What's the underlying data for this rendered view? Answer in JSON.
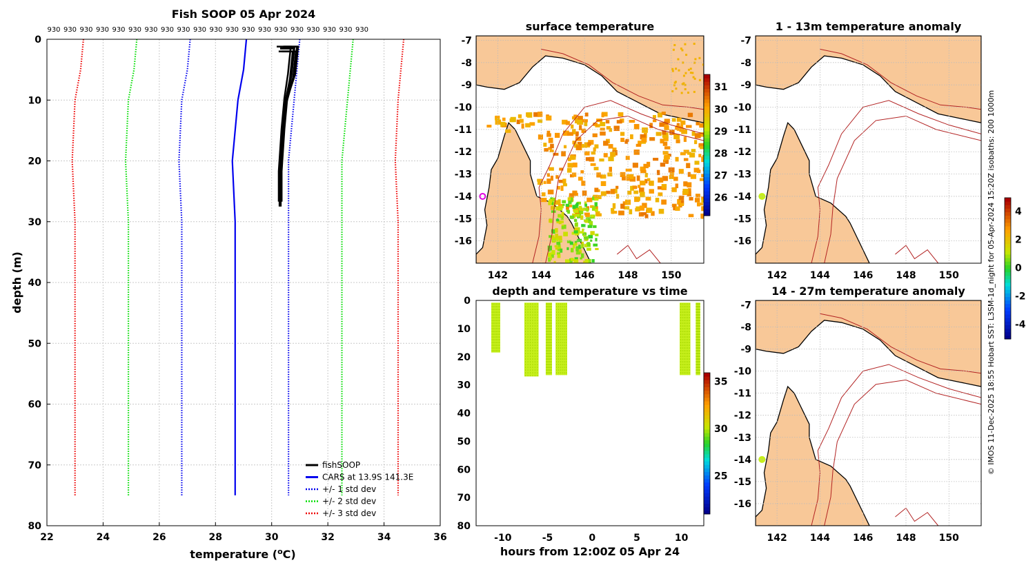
{
  "chart_data": [
    {
      "type": "line",
      "title": "Fish SOOP 05 Apr 2024",
      "xlabel": "temperature (",
      "xlabel_unit": "o",
      "xlabel_end": "C)",
      "ylabel": "depth (m)",
      "xlim": [
        22,
        36
      ],
      "ylim": [
        0,
        80
      ],
      "xticks": [
        22,
        24,
        26,
        28,
        30,
        32,
        34,
        36
      ],
      "yticks": [
        0,
        10,
        20,
        30,
        40,
        50,
        60,
        70,
        80
      ],
      "top_labels": [
        "930",
        "930",
        "930",
        "930",
        "930",
        "930",
        "930",
        "930",
        "930",
        "930",
        "930",
        "930",
        "930",
        "930",
        "930",
        "930",
        "930",
        "930",
        "930",
        "930"
      ],
      "series": [
        {
          "name": "fishSOOP",
          "color": "#000000",
          "style": "solid",
          "points": [
            [
              30.3,
              1.5
            ],
            [
              30.8,
              1.5
            ],
            [
              30.7,
              6
            ],
            [
              30.5,
              10
            ],
            [
              30.4,
              15
            ],
            [
              30.3,
              22
            ],
            [
              30.3,
              27
            ]
          ]
        },
        {
          "name": "CARS at 13.9S 141.3E",
          "color": "#0000ee",
          "style": "solid",
          "points": [
            [
              29.1,
              0
            ],
            [
              29.0,
              5
            ],
            [
              28.8,
              10
            ],
            [
              28.6,
              20
            ],
            [
              28.7,
              30
            ],
            [
              28.7,
              50
            ],
            [
              28.7,
              75
            ]
          ]
        },
        {
          "name": "+/- 1 std dev",
          "color": "#0000ee",
          "style": "dotted",
          "points": [
            [
              27.1,
              0
            ],
            [
              27.0,
              5
            ],
            [
              26.8,
              10
            ],
            [
              26.7,
              20
            ],
            [
              26.8,
              30
            ],
            [
              26.8,
              50
            ],
            [
              26.8,
              75
            ]
          ]
        },
        {
          "name": "+/- 1 std dev (upper)",
          "color": "#0000ee",
          "style": "dotted",
          "points": [
            [
              31.0,
              0
            ],
            [
              30.9,
              5
            ],
            [
              30.8,
              10
            ],
            [
              30.6,
              20
            ],
            [
              30.6,
              30
            ],
            [
              30.6,
              50
            ],
            [
              30.6,
              75
            ]
          ]
        },
        {
          "name": "+/- 2 std dev",
          "color": "#00dd00",
          "style": "dotted",
          "points": [
            [
              25.2,
              0
            ],
            [
              25.1,
              5
            ],
            [
              24.9,
              10
            ],
            [
              24.8,
              20
            ],
            [
              24.9,
              30
            ],
            [
              24.9,
              50
            ],
            [
              24.9,
              75
            ]
          ]
        },
        {
          "name": "+/- 2 std dev (upper)",
          "color": "#00dd00",
          "style": "dotted",
          "points": [
            [
              32.9,
              0
            ],
            [
              32.8,
              5
            ],
            [
              32.7,
              10
            ],
            [
              32.5,
              20
            ],
            [
              32.5,
              30
            ],
            [
              32.5,
              50
            ],
            [
              32.5,
              75
            ]
          ]
        },
        {
          "name": "+/- 3 std dev",
          "color": "#ee0000",
          "style": "dotted",
          "points": [
            [
              23.3,
              0
            ],
            [
              23.2,
              5
            ],
            [
              23.0,
              10
            ],
            [
              22.9,
              20
            ],
            [
              23.0,
              30
            ],
            [
              23.0,
              50
            ],
            [
              23.0,
              75
            ]
          ]
        },
        {
          "name": "+/- 3 std dev (upper)",
          "color": "#ee0000",
          "style": "dotted",
          "points": [
            [
              34.7,
              0
            ],
            [
              34.6,
              5
            ],
            [
              34.5,
              10
            ],
            [
              34.4,
              20
            ],
            [
              34.5,
              30
            ],
            [
              34.5,
              50
            ],
            [
              34.5,
              75
            ]
          ]
        }
      ],
      "legend": [
        {
          "label": "fishSOOP",
          "color": "#000000",
          "style": "solid"
        },
        {
          "label": "CARS at 13.9S 141.3E",
          "color": "#0000ee",
          "style": "solid"
        },
        {
          "label": "+/- 1 std dev",
          "color": "#0000ee",
          "style": "dotted"
        },
        {
          "label": "+/- 2 std dev",
          "color": "#00dd00",
          "style": "dotted"
        },
        {
          "label": "+/- 3 std dev",
          "color": "#ee0000",
          "style": "dotted"
        }
      ],
      "legend_position": "bottom-right"
    },
    {
      "type": "heatmap",
      "title": "surface temperature",
      "xlim": [
        141,
        151.5
      ],
      "ylim": [
        -17,
        -6.8
      ],
      "xticks": [
        142,
        144,
        146,
        148,
        150
      ],
      "yticks": [
        -7,
        -8,
        -9,
        -10,
        -11,
        -12,
        -13,
        -14,
        -15,
        -16
      ],
      "colorbar": {
        "range": [
          25.2,
          31.6
        ],
        "ticks": [
          26,
          27,
          28,
          29,
          30,
          31
        ]
      }
    },
    {
      "type": "scatter",
      "title": "depth and temperature vs time",
      "xlabel": "hours from 12:00Z 05 Apr 24",
      "xlim": [
        -13,
        12.5
      ],
      "ylim": [
        0,
        80
      ],
      "xticks": [
        -10,
        -5,
        0,
        5,
        10
      ],
      "yticks": [
        0,
        10,
        20,
        30,
        40,
        50,
        60,
        70,
        80
      ],
      "groups": [
        {
          "x0": -11.3,
          "x1": -10.3,
          "ymax": 18.5
        },
        {
          "x0": -7.6,
          "x1": -6.0,
          "ymax": 27
        },
        {
          "x0": -5.2,
          "x1": -4.5,
          "ymax": 26.5
        },
        {
          "x0": -4.1,
          "x1": -2.8,
          "ymax": 26.5
        },
        {
          "x0": 9.8,
          "x1": 11.0,
          "ymax": 26.5
        },
        {
          "x0": 11.6,
          "x1": 12.1,
          "ymax": 26.5
        }
      ],
      "colorbar": {
        "range": [
          21,
          36
        ],
        "ticks": [
          25,
          30,
          35
        ]
      }
    },
    {
      "type": "heatmap",
      "title": "1 - 13m temperature anomaly",
      "xlim": [
        141,
        151.5
      ],
      "ylim": [
        -17,
        -6.8
      ],
      "xticks": [
        142,
        144,
        146,
        148,
        150
      ],
      "yticks": [
        -7,
        -8,
        -9,
        -10,
        -11,
        -12,
        -13,
        -14,
        -15,
        -16
      ]
    },
    {
      "type": "heatmap",
      "title": "14 - 27m temperature anomaly",
      "xlim": [
        141,
        151.5
      ],
      "ylim": [
        -17,
        -6.8
      ],
      "xticks": [
        142,
        144,
        146,
        148,
        150
      ],
      "yticks": [
        -7,
        -8,
        -9,
        -10,
        -11,
        -12,
        -13,
        -14,
        -15,
        -16
      ],
      "colorbar": {
        "range": [
          -5,
          5
        ],
        "ticks": [
          4,
          2,
          0,
          -2,
          -4
        ]
      }
    }
  ],
  "credit": "© IMOS 11-Dec-2025 18:55 Hobart SST: L3SM-1d_night for 05-Apr-2024 15:20Z isobaths: 200  1000m",
  "colors": {
    "land": "#f8c898",
    "isobath": "#b22222"
  }
}
